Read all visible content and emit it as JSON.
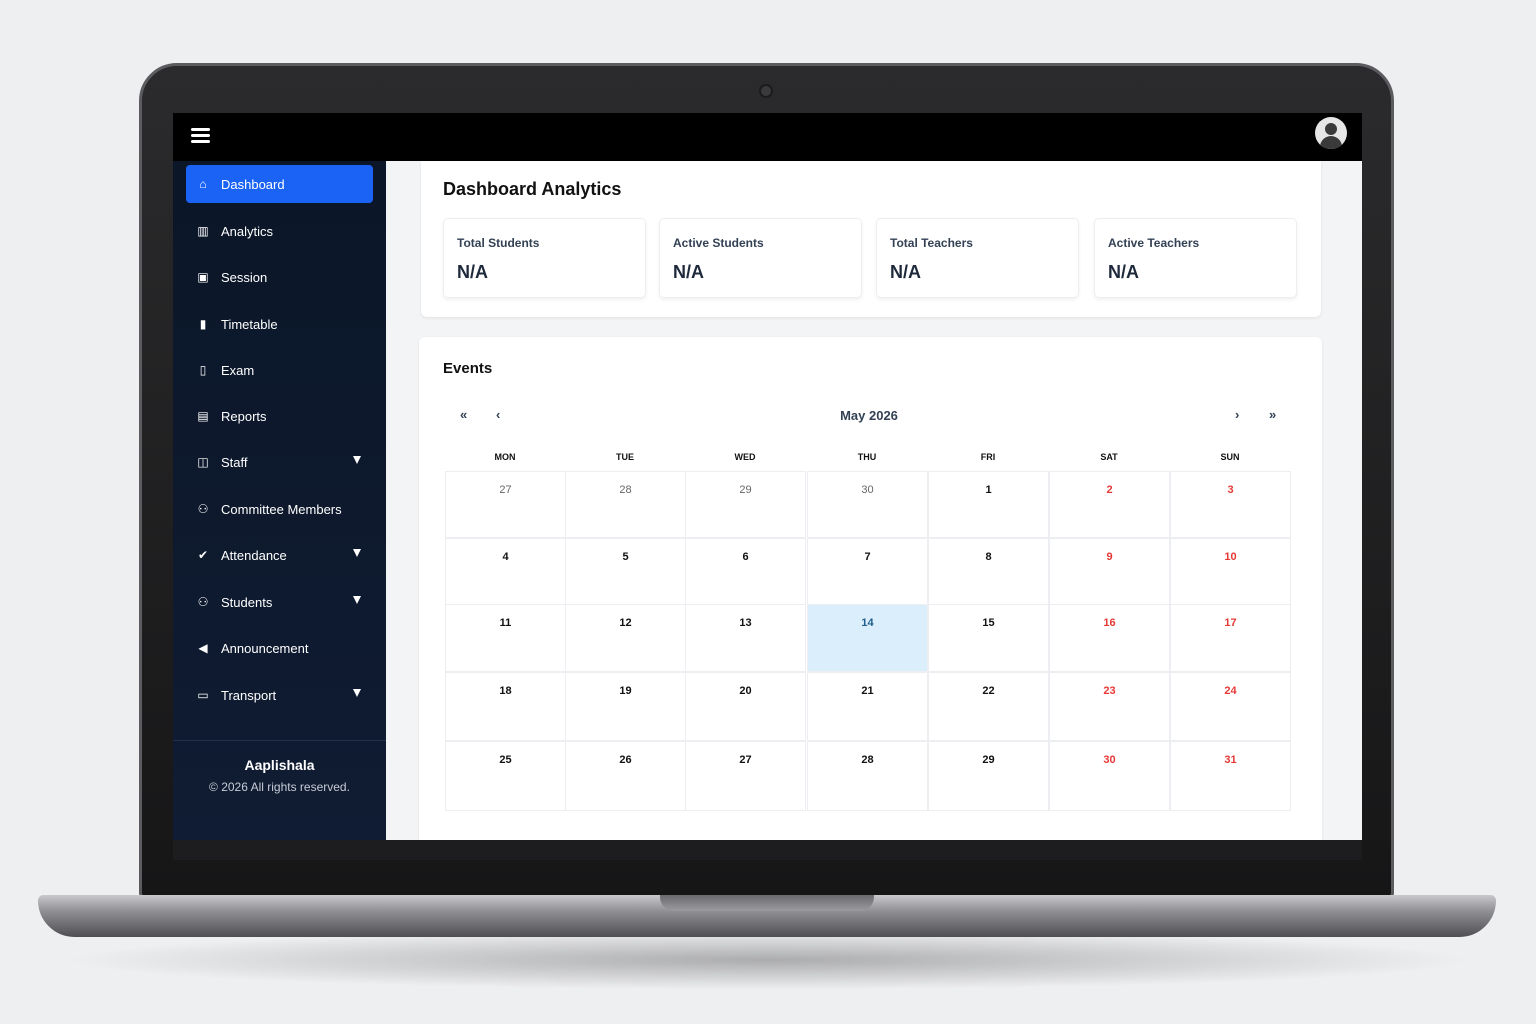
{
  "brand": {
    "name": "Aaplishala",
    "copyright": "© 2026 All rights reserved."
  },
  "topbar": {
    "menu_icon": "hamburger-icon",
    "avatar_icon": "user-avatar-icon"
  },
  "sidebar": {
    "items": [
      {
        "label": "Dashboard",
        "icon": "home-icon",
        "active": true,
        "has_submenu": false
      },
      {
        "label": "Analytics",
        "icon": "chart-icon",
        "active": false,
        "has_submenu": false
      },
      {
        "label": "Session",
        "icon": "calendar-icon",
        "active": false,
        "has_submenu": false
      },
      {
        "label": "Timetable",
        "icon": "clipboard-icon",
        "active": false,
        "has_submenu": false
      },
      {
        "label": "Exam",
        "icon": "book-icon",
        "active": false,
        "has_submenu": false
      },
      {
        "label": "Reports",
        "icon": "document-icon",
        "active": false,
        "has_submenu": false
      },
      {
        "label": "Staff",
        "icon": "staff-icon",
        "active": false,
        "has_submenu": true
      },
      {
        "label": "Committee Members",
        "icon": "group-icon",
        "active": false,
        "has_submenu": false
      },
      {
        "label": "Attendance",
        "icon": "check-circle-icon",
        "active": false,
        "has_submenu": true
      },
      {
        "label": "Students",
        "icon": "users-icon",
        "active": false,
        "has_submenu": true
      },
      {
        "label": "Announcement",
        "icon": "megaphone-icon",
        "active": false,
        "has_submenu": false
      },
      {
        "label": "Transport",
        "icon": "bus-icon",
        "active": false,
        "has_submenu": true
      }
    ]
  },
  "analytics": {
    "title": "Dashboard Analytics",
    "cards": [
      {
        "label": "Total Students",
        "value": "N/A"
      },
      {
        "label": "Active Students",
        "value": "N/A"
      },
      {
        "label": "Total Teachers",
        "value": "N/A"
      },
      {
        "label": "Active Teachers",
        "value": "N/A"
      }
    ]
  },
  "events": {
    "title": "Events",
    "nav": {
      "prev_year": "«",
      "prev_month": "‹",
      "next_month": "›",
      "next_year": "»"
    },
    "month_label": "May 2026",
    "weekdays": [
      "MON",
      "TUE",
      "WED",
      "THU",
      "FRI",
      "SAT",
      "SUN"
    ],
    "weeks": [
      [
        {
          "d": "27",
          "muted": true
        },
        {
          "d": "28",
          "muted": true
        },
        {
          "d": "29",
          "muted": true
        },
        {
          "d": "30",
          "muted": true
        },
        {
          "d": "1"
        },
        {
          "d": "2",
          "weekend": true
        },
        {
          "d": "3",
          "weekend": true
        }
      ],
      [
        {
          "d": "4"
        },
        {
          "d": "5"
        },
        {
          "d": "6"
        },
        {
          "d": "7"
        },
        {
          "d": "8"
        },
        {
          "d": "9",
          "weekend": true
        },
        {
          "d": "10",
          "weekend": true
        }
      ],
      [
        {
          "d": "11"
        },
        {
          "d": "12"
        },
        {
          "d": "13"
        },
        {
          "d": "14",
          "today": true
        },
        {
          "d": "15"
        },
        {
          "d": "16",
          "weekend": true
        },
        {
          "d": "17",
          "weekend": true
        }
      ],
      [
        {
          "d": "18"
        },
        {
          "d": "19"
        },
        {
          "d": "20"
        },
        {
          "d": "21"
        },
        {
          "d": "22"
        },
        {
          "d": "23",
          "weekend": true
        },
        {
          "d": "24",
          "weekend": true
        }
      ],
      [
        {
          "d": "25"
        },
        {
          "d": "26"
        },
        {
          "d": "27"
        },
        {
          "d": "28"
        },
        {
          "d": "29"
        },
        {
          "d": "30",
          "weekend": true
        },
        {
          "d": "31",
          "weekend": true
        }
      ]
    ]
  },
  "colors": {
    "accent": "#1a63f5",
    "sidebar_bg": "#0b1628",
    "weekend": "#e53935",
    "today_bg": "#dbeefb"
  }
}
